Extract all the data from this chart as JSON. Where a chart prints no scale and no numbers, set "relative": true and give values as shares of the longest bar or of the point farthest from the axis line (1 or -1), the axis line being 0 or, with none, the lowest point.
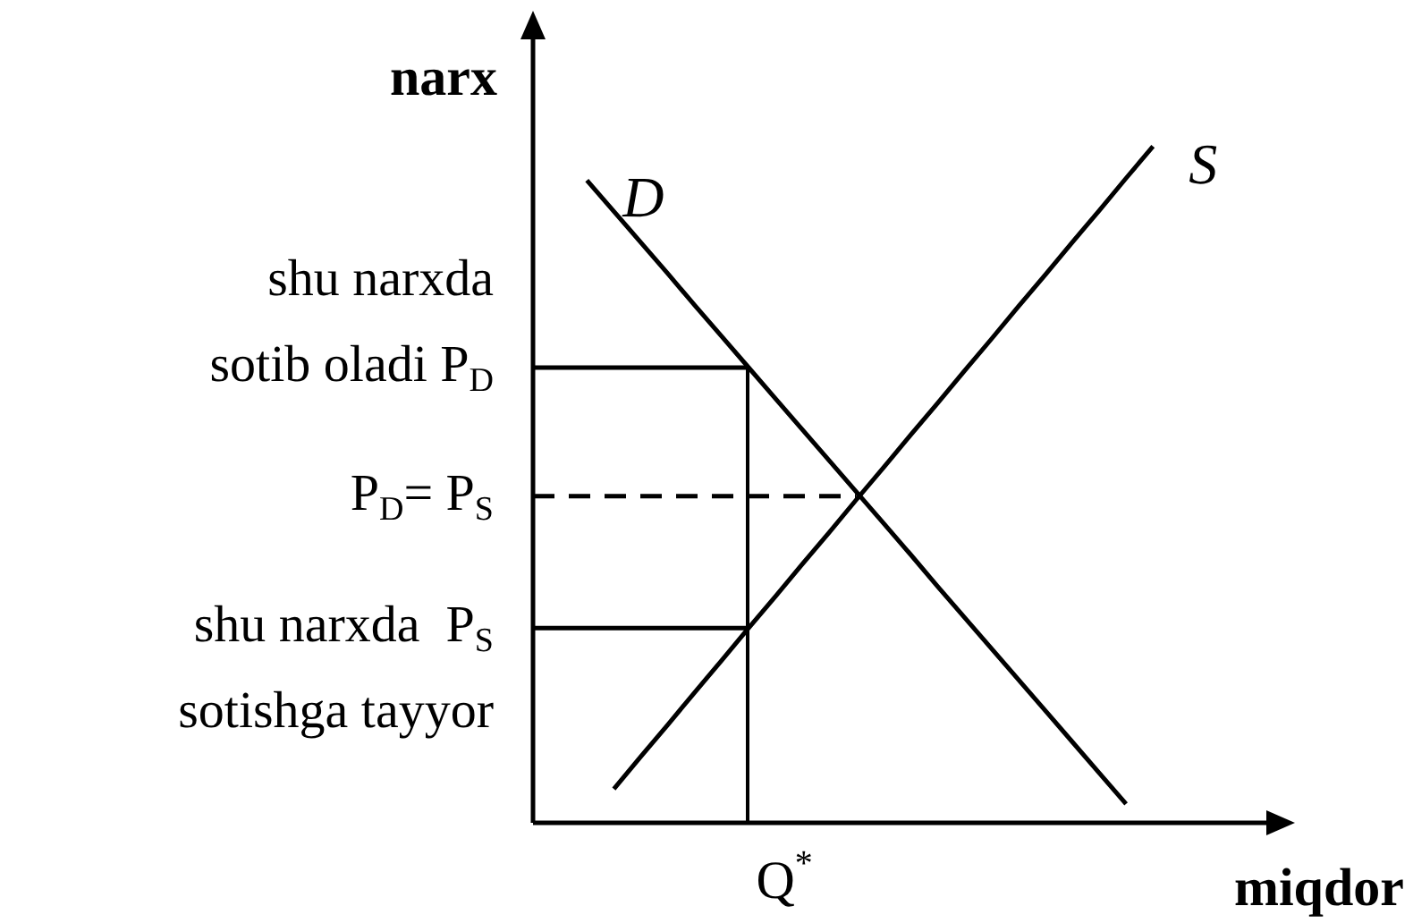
{
  "chart_data": {
    "type": "line",
    "relative": true,
    "xlabel": "miqdor",
    "ylabel": "narx",
    "legend": false,
    "marker": "none",
    "categories": [
      null,
      null,
      null,
      null,
      null,
      null,
      null,
      null,
      null,
      null,
      null,
      null,
      null,
      null,
      null,
      null,
      null,
      null,
      null,
      null,
      null,
      null,
      null,
      null,
      null,
      null,
      null,
      null,
      null
    ],
    "series": [
      {
        "name": "D",
        "color": "#000000",
        "values": [
          null,
          null,
          0.95,
          0.904,
          0.858,
          0.812,
          0.765,
          0.719,
          0.673,
          0.627,
          0.581,
          0.535,
          0.489,
          0.443,
          0.397,
          0.35,
          0.304,
          0.258,
          0.212,
          0.166,
          0.12,
          0.074,
          0.028,
          null,
          null,
          null,
          null,
          null,
          null
        ]
      },
      {
        "name": "S",
        "color": "#000000",
        "values": [
          null,
          null,
          null,
          0.05,
          0.098,
          0.145,
          0.193,
          0.24,
          0.288,
          0.335,
          0.383,
          0.43,
          0.478,
          0.525,
          0.573,
          0.62,
          0.668,
          0.715,
          0.763,
          0.81,
          0.858,
          0.905,
          0.953,
          1.0,
          null,
          null,
          null,
          null,
          null
        ]
      },
      {
        "color": "#000000",
        "values": [
          0.673,
          0.673,
          0.673,
          0.673,
          0.673,
          0.673,
          0.673,
          0.673,
          0.673,
          null,
          null,
          null,
          null,
          null,
          null,
          null,
          null,
          null,
          null,
          null,
          null,
          null,
          null,
          null,
          null,
          null,
          null,
          null,
          null
        ]
      },
      {
        "color": "#000000",
        "values": [
          0.288,
          0.288,
          0.288,
          0.288,
          0.288,
          0.288,
          0.288,
          0.288,
          0.288,
          null,
          null,
          null,
          null,
          null,
          null,
          null,
          null,
          null,
          null,
          null,
          null,
          null,
          null,
          null,
          null,
          null,
          null,
          null,
          null
        ]
      },
      {
        "color": "#000000",
        "line_style": "dashed",
        "values": [
          0.483,
          0.483,
          0.483,
          0.483,
          0.483,
          0.483,
          0.483,
          0.483,
          0.483,
          0.483,
          0.483,
          0.483,
          0.483,
          null,
          null,
          null,
          null,
          null,
          null,
          null,
          null,
          null,
          null,
          null,
          null,
          null,
          null,
          null,
          null
        ]
      }
    ],
    "annotations": [
      "shu narxda\nsotib oladi P$_{D}$",
      "P$_{D}$= P$_{S}$",
      "shu narxda  P$_{S}$\nsotishga tayyor",
      "Q$^{*}$"
    ]
  }
}
